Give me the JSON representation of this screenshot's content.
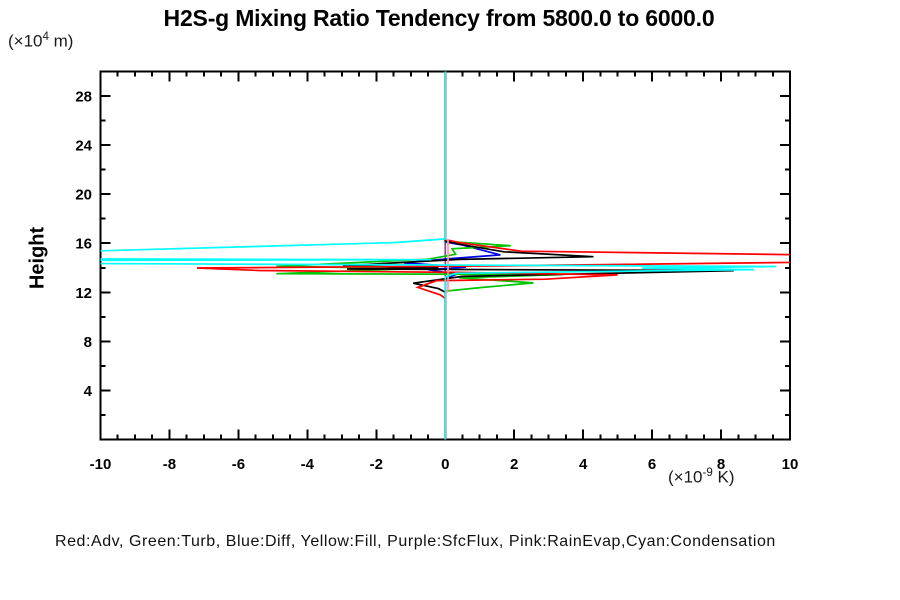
{
  "title": "H2S-g Mixing Ratio Tendency from 5800.0 to 6000.0",
  "ylabel_text": "Height",
  "y_unit": {
    "pre": "(×10",
    "sup": "4",
    "post": " m)"
  },
  "x_unit": {
    "pre": "(×10",
    "sup": "-9",
    "post": " K)"
  },
  "legend": "Red:Adv, Green:Turb, Blue:Diff, Yellow:Fill, Purple:SfcFlux, Pink:RainEvap,Cyan:Condensation",
  "chart_data": {
    "type": "line",
    "title": "H2S-g Mixing Ratio Tendency from 5800.0 to 6000.0",
    "xlabel": "(×10⁻⁹ K)",
    "ylabel": "Height (×10⁴ m)",
    "xlim": [
      -10,
      10
    ],
    "ylim": [
      0,
      30
    ],
    "grid": false,
    "frame": true,
    "axis_color": "#000000",
    "background": "#ffffff",
    "x_major_ticks": [
      -10,
      -8,
      -6,
      -4,
      -2,
      0,
      2,
      4,
      6,
      8,
      10
    ],
    "x_tick_labels": [
      "-10",
      "-8",
      "-6",
      "-4",
      "-2",
      "0",
      "2",
      "4",
      "6",
      "8",
      "10"
    ],
    "x_minor_step": 0.5,
    "y_major_ticks": [
      4,
      8,
      12,
      16,
      20,
      24,
      28
    ],
    "y_tick_labels": [
      "4",
      "8",
      "12",
      "16",
      "20",
      "24",
      "28"
    ],
    "y_minor_step": 2,
    "zero_line_x": 0,
    "series": [
      {
        "name": "Fill",
        "color_name": "yellow",
        "color": "#ffff00",
        "points": [
          [
            0,
            30.5
          ],
          [
            0,
            -0.5
          ]
        ]
      },
      {
        "name": "SfcFlux",
        "color_name": "purple",
        "color": "#9933cc",
        "points": [
          [
            0,
            30.5
          ],
          [
            0,
            -0.5
          ]
        ]
      },
      {
        "name": "Diff",
        "color_name": "blue",
        "color": "#0000e6",
        "points": [
          [
            0,
            30.5
          ],
          [
            0,
            16.1
          ],
          [
            0.5,
            15.85
          ],
          [
            1.6,
            15.05
          ],
          [
            0.15,
            14.75
          ],
          [
            -1.2,
            14.4
          ],
          [
            0.6,
            14.05
          ],
          [
            -0.5,
            13.85
          ],
          [
            -0.12,
            13.68
          ],
          [
            0.3,
            13.45
          ],
          [
            0,
            13.1
          ],
          [
            0,
            -0.5
          ]
        ]
      },
      {
        "name": "Turb",
        "color_name": "green",
        "color": "#00c400",
        "points": [
          [
            0,
            30.5
          ],
          [
            0,
            16.15
          ],
          [
            1.9,
            15.8
          ],
          [
            0.2,
            15.55
          ],
          [
            0.3,
            15.1
          ],
          [
            -0.5,
            14.7
          ],
          [
            -4.9,
            14.11
          ],
          [
            -0.8,
            13.95
          ],
          [
            -4.9,
            13.52
          ],
          [
            3.4,
            13.45
          ],
          [
            1.74,
            13.3
          ],
          [
            0.4,
            13.18
          ],
          [
            2.56,
            12.77
          ],
          [
            1.08,
            12.4
          ],
          [
            0,
            12.1
          ],
          [
            0,
            -0.5
          ]
        ]
      },
      {
        "name": "(unlabeled total)",
        "color_name": "black",
        "color": "#000000",
        "points": [
          [
            0,
            30.5
          ],
          [
            0,
            16.2
          ],
          [
            0.35,
            15.95
          ],
          [
            1.7,
            15.3
          ],
          [
            4.3,
            14.9
          ],
          [
            0.4,
            14.68
          ],
          [
            -2.97,
            14.17
          ],
          [
            -0.2,
            14.0
          ],
          [
            -2.85,
            13.9
          ],
          [
            8.37,
            13.76
          ],
          [
            0.5,
            13.3
          ],
          [
            -0.93,
            12.74
          ],
          [
            -0.2,
            12.3
          ],
          [
            0,
            12.0
          ],
          [
            0,
            -0.5
          ]
        ]
      },
      {
        "name": "Adv",
        "color_name": "red",
        "color": "#ff0000",
        "points": [
          [
            0,
            30.5
          ],
          [
            0,
            16.3
          ],
          [
            0.4,
            16.05
          ],
          [
            2.2,
            15.35
          ],
          [
            12,
            15.0
          ],
          [
            12,
            14.5
          ],
          [
            1.5,
            14.15
          ],
          [
            -7.2,
            13.98
          ],
          [
            -5.4,
            13.78
          ],
          [
            0.3,
            13.62
          ],
          [
            5.0,
            13.42
          ],
          [
            2.9,
            13.07
          ],
          [
            -0.25,
            12.95
          ],
          [
            -0.8,
            12.4
          ],
          [
            -0.15,
            11.8
          ],
          [
            0,
            11.5
          ],
          [
            0,
            -0.5
          ]
        ]
      },
      {
        "name": "RainEvap",
        "color_name": "pink",
        "color": "#ff9999",
        "points": [
          [
            0,
            30.5
          ],
          [
            0,
            16.4
          ],
          [
            0.08,
            16.25
          ],
          [
            0.08,
            12.2
          ],
          [
            0,
            11.8
          ],
          [
            0,
            -0.5
          ]
        ]
      },
      {
        "name": "Condensation",
        "color_name": "cyan",
        "color": "#00ffff",
        "points": [
          [
            0,
            30.5
          ],
          [
            0,
            16.35
          ],
          [
            -1.5,
            16.05
          ],
          [
            -11,
            15.3
          ],
          [
            -11,
            14.72
          ],
          [
            -0.4,
            14.66
          ],
          [
            -11,
            14.6
          ],
          [
            -11,
            14.36
          ],
          [
            9.6,
            14.1
          ],
          [
            5.7,
            13.97
          ],
          [
            8.95,
            13.85
          ],
          [
            0.3,
            13.55
          ],
          [
            0,
            13.25
          ],
          [
            0,
            -0.5
          ]
        ]
      }
    ]
  }
}
